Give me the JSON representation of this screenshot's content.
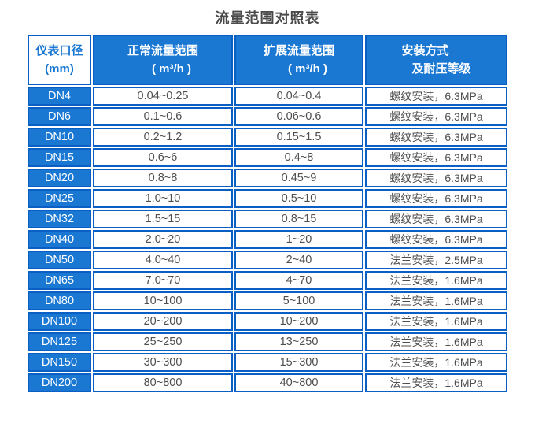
{
  "page": {
    "title": "流量范围对照表"
  },
  "colors": {
    "cell_fill_blue": "#1a78d3",
    "border_blue": "#0a5fc5",
    "data_text": "#4f4f4f",
    "header_text": "#ffffff",
    "title_text": "#4a4a4a",
    "background": "#ffffff"
  },
  "table": {
    "headers": [
      {
        "line1": "仪表口径",
        "line2": "(mm)"
      },
      {
        "line1": "正常流量范围",
        "line2": "( m³/h )"
      },
      {
        "line1": "扩展流量范围",
        "line2": "( m³/h )"
      },
      {
        "line1": "安装方式",
        "line2": "及耐压等级"
      }
    ],
    "rows": [
      {
        "dn": "DN4",
        "normal": "0.04~0.25",
        "extended": "0.04~0.4",
        "install": "螺纹安装，6.3MPa"
      },
      {
        "dn": "DN6",
        "normal": "0.1~0.6",
        "extended": "0.06~0.6",
        "install": "螺纹安装，6.3MPa"
      },
      {
        "dn": "DN10",
        "normal": "0.2~1.2",
        "extended": "0.15~1.5",
        "install": "螺纹安装，6.3MPa"
      },
      {
        "dn": "DN15",
        "normal": "0.6~6",
        "extended": "0.4~8",
        "install": "螺纹安装，6.3MPa"
      },
      {
        "dn": "DN20",
        "normal": "0.8~8",
        "extended": "0.45~9",
        "install": "螺纹安装，6.3MPa"
      },
      {
        "dn": "DN25",
        "normal": "1.0~10",
        "extended": "0.5~10",
        "install": "螺纹安装，6.3MPa"
      },
      {
        "dn": "DN32",
        "normal": "1.5~15",
        "extended": "0.8~15",
        "install": "螺纹安装，6.3MPa"
      },
      {
        "dn": "DN40",
        "normal": "2.0~20",
        "extended": "1~20",
        "install": "螺纹安装，6.3MPa"
      },
      {
        "dn": "DN50",
        "normal": "4.0~40",
        "extended": "2~40",
        "install": "法兰安装，2.5MPa"
      },
      {
        "dn": "DN65",
        "normal": "7.0~70",
        "extended": "4~70",
        "install": "法兰安装，1.6MPa"
      },
      {
        "dn": "DN80",
        "normal": "10~100",
        "extended": "5~100",
        "install": "法兰安装，1.6MPa"
      },
      {
        "dn": "DN100",
        "normal": "20~200",
        "extended": "10~200",
        "install": "法兰安装，1.6MPa"
      },
      {
        "dn": "DN125",
        "normal": "25~250",
        "extended": "13~250",
        "install": "法兰安装，1.6MPa"
      },
      {
        "dn": "DN150",
        "normal": "30~300",
        "extended": "15~300",
        "install": "法兰安装，1.6MPa"
      },
      {
        "dn": "DN200",
        "normal": "80~800",
        "extended": "40~800",
        "install": "法兰安装，1.6MPa"
      }
    ]
  },
  "chart_data": {
    "type": "table",
    "title": "流量范围对照表",
    "columns": [
      "仪表口径 (mm)",
      "正常流量范围 ( m³/h )",
      "扩展流量范围 ( m³/h )",
      "安装方式及耐压等级"
    ],
    "rows": [
      [
        "DN4",
        "0.04~0.25",
        "0.04~0.4",
        "螺纹安装，6.3MPa"
      ],
      [
        "DN6",
        "0.1~0.6",
        "0.06~0.6",
        "螺纹安装，6.3MPa"
      ],
      [
        "DN10",
        "0.2~1.2",
        "0.15~1.5",
        "螺纹安装，6.3MPa"
      ],
      [
        "DN15",
        "0.6~6",
        "0.4~8",
        "螺纹安装，6.3MPa"
      ],
      [
        "DN20",
        "0.8~8",
        "0.45~9",
        "螺纹安装，6.3MPa"
      ],
      [
        "DN25",
        "1.0~10",
        "0.5~10",
        "螺纹安装，6.3MPa"
      ],
      [
        "DN32",
        "1.5~15",
        "0.8~15",
        "螺纹安装，6.3MPa"
      ],
      [
        "DN40",
        "2.0~20",
        "1~20",
        "螺纹安装，6.3MPa"
      ],
      [
        "DN50",
        "4.0~40",
        "2~40",
        "法兰安装，2.5MPa"
      ],
      [
        "DN65",
        "7.0~70",
        "4~70",
        "法兰安装，1.6MPa"
      ],
      [
        "DN80",
        "10~100",
        "5~100",
        "法兰安装，1.6MPa"
      ],
      [
        "DN100",
        "20~200",
        "10~200",
        "法兰安装，1.6MPa"
      ],
      [
        "DN125",
        "25~250",
        "13~250",
        "法兰安装，1.6MPa"
      ],
      [
        "DN150",
        "30~300",
        "15~300",
        "法兰安装，1.6MPa"
      ],
      [
        "DN200",
        "80~800",
        "40~800",
        "法兰安装，1.6MPa"
      ]
    ],
    "layout": {
      "header_fill": "#1a78d3",
      "border_color": "#0a5fc5",
      "legend": "none",
      "grid": "on"
    }
  }
}
